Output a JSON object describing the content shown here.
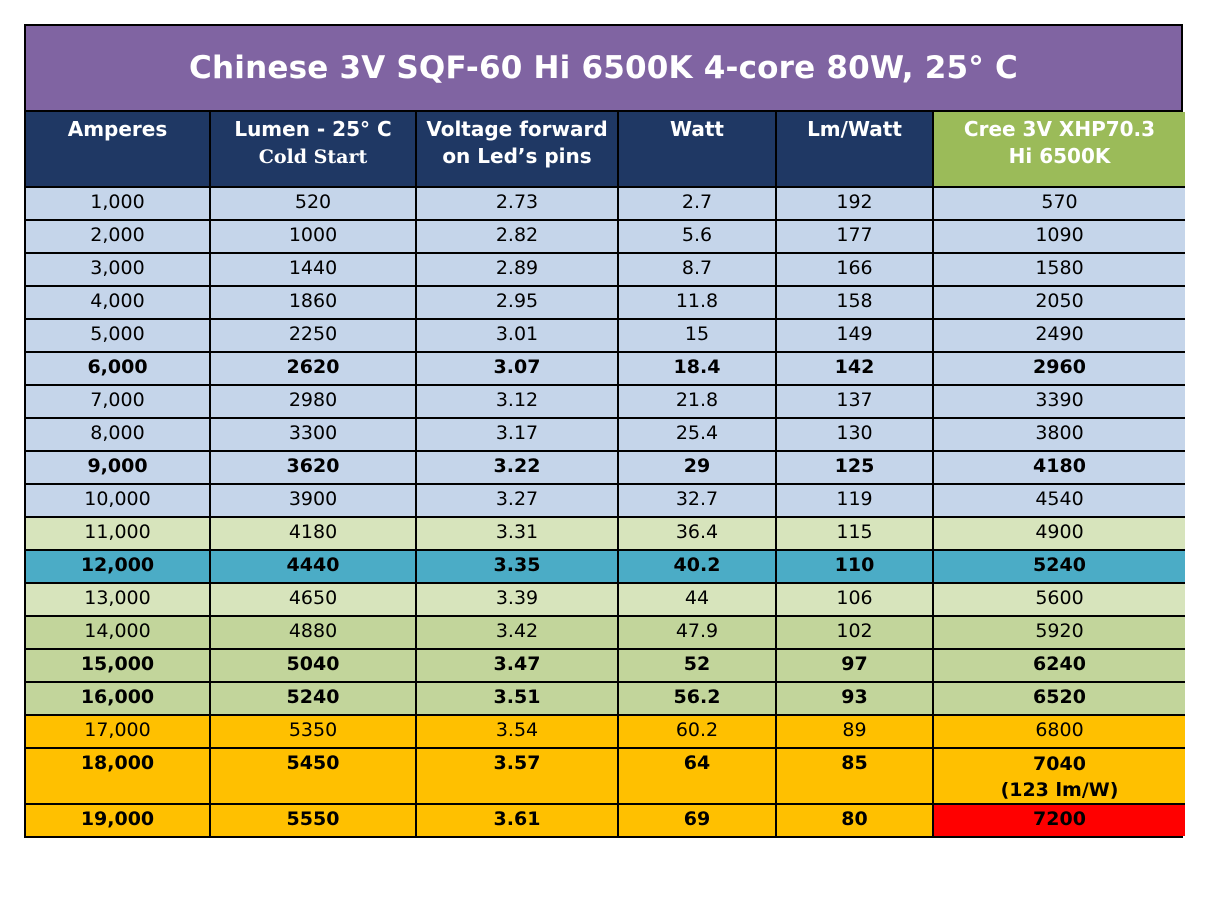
{
  "title": "Chinese 3V SQF-60 Hi 6500K 4-core 80W, 25° C",
  "headers": {
    "amperes": "Amperes",
    "lumen_line1": "Lumen - 25° C",
    "lumen_line2": "Cold Start",
    "voltage_line1": "Voltage forward",
    "voltage_line2": "on Led’s pins",
    "watt": "Watt",
    "lmwatt": "Lm/Watt",
    "cree_line1": "Cree 3V XHP70.3",
    "cree_line2": "Hi 6500K"
  },
  "colors": {
    "title_bg": "#8064a2",
    "header_bg": "#1f3864",
    "cree_header_bg": "#9bbb59",
    "blue_rows": "#c5d5ea",
    "light_green_rows": "#d7e4bc",
    "highlight_row": "#4bacc6",
    "green_rows": "#c2d59b",
    "orange_rows": "#ffc000",
    "red_cell": "#ff0000"
  },
  "rows": [
    {
      "amperes": "1,000",
      "lumen": "520",
      "voltage": "2.73",
      "watt": "2.7",
      "lmwatt": "192",
      "cree": "570",
      "cree_note": ""
    },
    {
      "amperes": "2,000",
      "lumen": "1000",
      "voltage": "2.82",
      "watt": "5.6",
      "lmwatt": "177",
      "cree": "1090",
      "cree_note": ""
    },
    {
      "amperes": "3,000",
      "lumen": "1440",
      "voltage": "2.89",
      "watt": "8.7",
      "lmwatt": "166",
      "cree": "1580",
      "cree_note": ""
    },
    {
      "amperes": "4,000",
      "lumen": "1860",
      "voltage": "2.95",
      "watt": "11.8",
      "lmwatt": "158",
      "cree": "2050",
      "cree_note": ""
    },
    {
      "amperes": "5,000",
      "lumen": "2250",
      "voltage": "3.01",
      "watt": "15",
      "lmwatt": "149",
      "cree": "2490",
      "cree_note": ""
    },
    {
      "amperes": "6,000",
      "lumen": "2620",
      "voltage": "3.07",
      "watt": "18.4",
      "lmwatt": "142",
      "cree": "2960",
      "cree_note": ""
    },
    {
      "amperes": "7,000",
      "lumen": "2980",
      "voltage": "3.12",
      "watt": "21.8",
      "lmwatt": "137",
      "cree": "3390",
      "cree_note": ""
    },
    {
      "amperes": "8,000",
      "lumen": "3300",
      "voltage": "3.17",
      "watt": "25.4",
      "lmwatt": "130",
      "cree": "3800",
      "cree_note": ""
    },
    {
      "amperes": "9,000",
      "lumen": "3620",
      "voltage": "3.22",
      "watt": "29",
      "lmwatt": "125",
      "cree": "4180",
      "cree_note": ""
    },
    {
      "amperes": "10,000",
      "lumen": "3900",
      "voltage": "3.27",
      "watt": "32.7",
      "lmwatt": "119",
      "cree": "4540",
      "cree_note": ""
    },
    {
      "amperes": "11,000",
      "lumen": "4180",
      "voltage": "3.31",
      "watt": "36.4",
      "lmwatt": "115",
      "cree": "4900",
      "cree_note": ""
    },
    {
      "amperes": "12,000",
      "lumen": "4440",
      "voltage": "3.35",
      "watt": "40.2",
      "lmwatt": "110",
      "cree": "5240",
      "cree_note": ""
    },
    {
      "amperes": "13,000",
      "lumen": "4650",
      "voltage": "3.39",
      "watt": "44",
      "lmwatt": "106",
      "cree": "5600",
      "cree_note": ""
    },
    {
      "amperes": "14,000",
      "lumen": "4880",
      "voltage": "3.42",
      "watt": "47.9",
      "lmwatt": "102",
      "cree": "5920",
      "cree_note": ""
    },
    {
      "amperes": "15,000",
      "lumen": "5040",
      "voltage": "3.47",
      "watt": "52",
      "lmwatt": "97",
      "cree": "6240",
      "cree_note": ""
    },
    {
      "amperes": "16,000",
      "lumen": "5240",
      "voltage": "3.51",
      "watt": "56.2",
      "lmwatt": "93",
      "cree": "6520",
      "cree_note": ""
    },
    {
      "amperes": "17,000",
      "lumen": "5350",
      "voltage": "3.54",
      "watt": "60.2",
      "lmwatt": "89",
      "cree": "6800",
      "cree_note": ""
    },
    {
      "amperes": "18,000",
      "lumen": "5450",
      "voltage": "3.57",
      "watt": "64",
      "lmwatt": "85",
      "cree": "7040",
      "cree_note": "(123 lm/W)"
    },
    {
      "amperes": "19,000",
      "lumen": "5550",
      "voltage": "3.61",
      "watt": "69",
      "lmwatt": "80",
      "cree": "7200",
      "cree_note": ""
    }
  ]
}
